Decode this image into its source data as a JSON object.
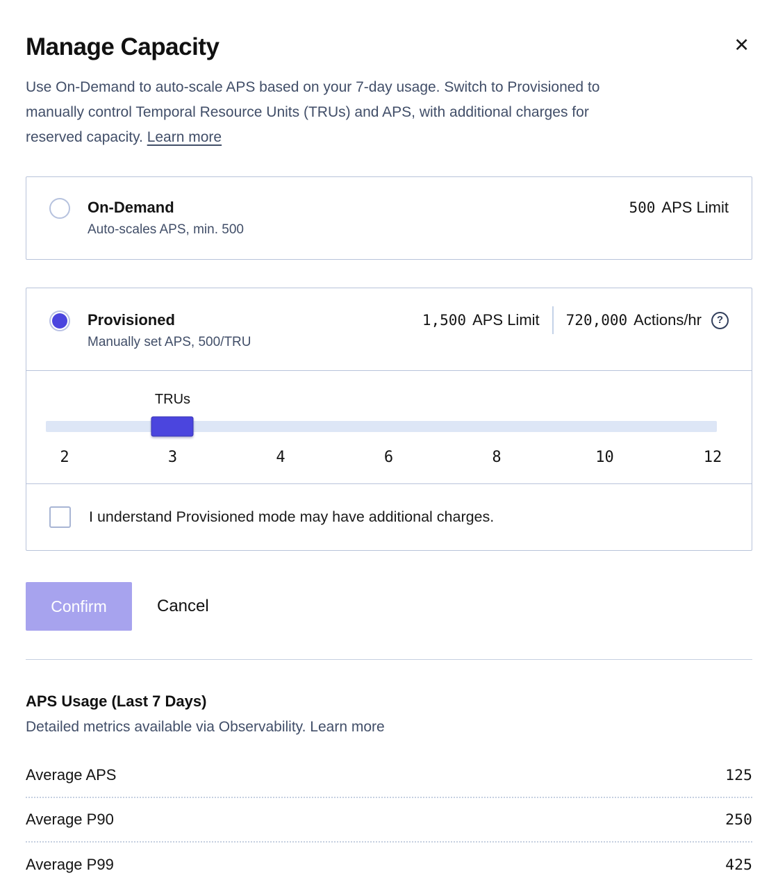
{
  "modal": {
    "title": "Manage Capacity",
    "close_glyph": "✕",
    "description_lines": [
      "Use On-Demand to auto-scale APS based on your 7-day usage. Switch to Provisioned to",
      "manually control Temporal Resource Units (TRUs) and APS, with additional charges for",
      "reserved capacity."
    ],
    "learn_more": "Learn more"
  },
  "options": {
    "on_demand": {
      "label": "On-Demand",
      "sublabel": "Auto-scales APS, min. 500",
      "selected": false,
      "aps_value": "500",
      "aps_label": "APS Limit"
    },
    "provisioned": {
      "label": "Provisioned",
      "sublabel": "Manually set APS, 500/TRU",
      "selected": true,
      "aps_value": "1,500",
      "aps_label": "APS Limit",
      "actions_value": "720,000",
      "actions_label": "Actions/hr",
      "help_glyph": "?"
    }
  },
  "slider": {
    "label": "TRUs",
    "value": "3",
    "ticks": [
      "2",
      "3",
      "4",
      "6",
      "8",
      "10",
      "12"
    ]
  },
  "checkbox": {
    "label": "I understand Provisioned mode may have additional charges.",
    "checked": false
  },
  "actions": {
    "confirm": "Confirm",
    "cancel": "Cancel"
  },
  "usage": {
    "title": "APS Usage (Last 7 Days)",
    "subtitle": "Detailed metrics available via Observability.",
    "learn_more": "Learn more",
    "rows": [
      {
        "label": "Average APS",
        "value": "125"
      },
      {
        "label": "Average P90",
        "value": "250"
      },
      {
        "label": "Average P99",
        "value": "425"
      }
    ]
  },
  "colors": {
    "accent_indigo": "#4b45de",
    "confirm_disabled": "#a7a3ee",
    "card_border": "#b8c3da",
    "slate_text": "#414e68",
    "track": "#dde6f6"
  }
}
